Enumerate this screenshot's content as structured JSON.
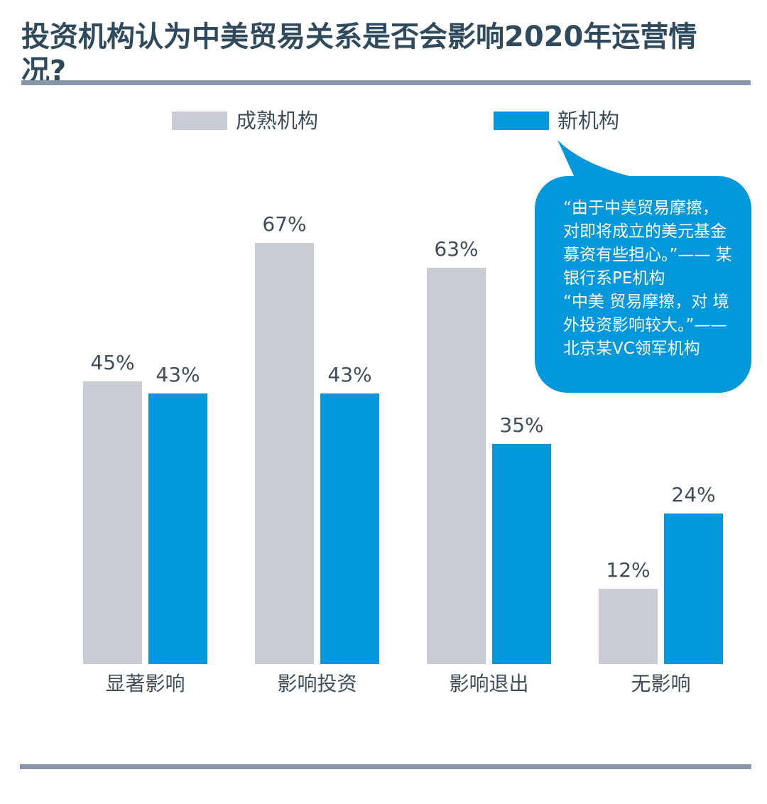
{
  "title": "投资机构认为中美贸易关系是否会影响2020年运营情况?",
  "colors": {
    "accent_blue": "#0397DC",
    "bar_gray": "#C9CCD4",
    "title_text": "#2E4A5C",
    "label_text": "#3E4E5A",
    "divider": "#8796A9",
    "callout_text": "#FFFFFF"
  },
  "legend": {
    "items": [
      {
        "label": "成熟机构",
        "color": "#C9CCD4"
      },
      {
        "label": "新机构",
        "color": "#0397DC"
      }
    ]
  },
  "callout": {
    "lines": [
      "“由于中美贸易摩擦，",
      "对即将成立的美元基金",
      "募资有些担心。”—— 某",
      "银行系PE机构",
      "“中美 贸易摩擦，对 境",
      "外投资影响较大。”——",
      "北京某VC领军机构"
    ]
  },
  "chart_data": {
    "type": "bar",
    "title": "投资机构认为中美贸易关系是否会影响2020年运营情况?",
    "categories": [
      "显著影响",
      "影响投资",
      "影响退出",
      "无影响"
    ],
    "series": [
      {
        "name": "成熟机构",
        "color": "#C9CCD4",
        "values": [
          45,
          67,
          63,
          12
        ]
      },
      {
        "name": "新机构",
        "color": "#0397DC",
        "values": [
          43,
          43,
          35,
          24
        ]
      }
    ],
    "unit": "%",
    "ylim": [
      0,
      100
    ],
    "value_labels": true,
    "grid": false,
    "legend_position": "top"
  }
}
